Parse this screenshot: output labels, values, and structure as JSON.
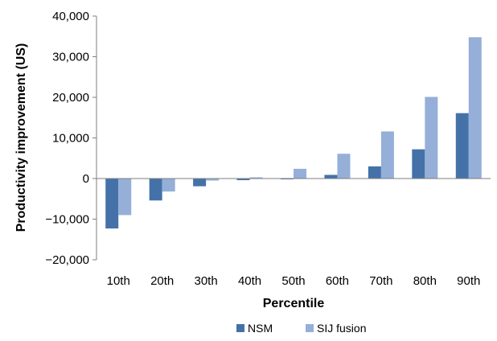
{
  "chart_data": {
    "type": "bar",
    "xlabel": "Percentile",
    "ylabel": "Productivity improvement (US)",
    "categories": [
      "10th",
      "20th",
      "30th",
      "40th",
      "50th",
      "60th",
      "70th",
      "80th",
      "90th"
    ],
    "series": [
      {
        "name": "NSM",
        "color": "#4472a8",
        "values": [
          -12300,
          -5400,
          -1900,
          -400,
          -200,
          900,
          3000,
          7200,
          16100
        ]
      },
      {
        "name": "SIJ fusion",
        "color": "#95afd8",
        "values": [
          -9000,
          -3200,
          -500,
          300,
          2400,
          6100,
          11600,
          20100,
          34800
        ]
      }
    ],
    "ylim": [
      -20000,
      40000
    ],
    "yticks": [
      -20000,
      -10000,
      0,
      10000,
      20000,
      30000,
      40000
    ],
    "ytick_labels": [
      "−20,000",
      "−10,000",
      "0",
      "10,000",
      "20,000",
      "30,000",
      "40,000"
    ],
    "grid": false,
    "legend_position": "bottom"
  }
}
